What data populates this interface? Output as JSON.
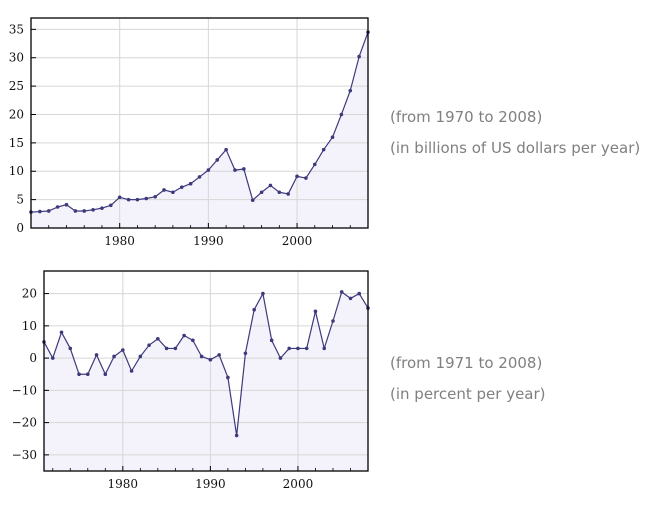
{
  "chart_data": [
    {
      "type": "line",
      "title": "",
      "xlabel": "",
      "ylabel": "",
      "xlim": [
        1970,
        2008
      ],
      "ylim": [
        0,
        37
      ],
      "x_ticks": [
        1980,
        1990,
        2000
      ],
      "y_ticks": [
        0,
        5,
        10,
        15,
        20,
        25,
        30,
        35
      ],
      "grid": true,
      "fill": "below",
      "notes": [
        "(from 1970 to 2008)",
        "(in billions of US dollars per year)"
      ],
      "x": [
        1970,
        1971,
        1972,
        1973,
        1974,
        1975,
        1976,
        1977,
        1978,
        1979,
        1980,
        1981,
        1982,
        1983,
        1984,
        1985,
        1986,
        1987,
        1988,
        1989,
        1990,
        1991,
        1992,
        1993,
        1994,
        1995,
        1996,
        1997,
        1998,
        1999,
        2000,
        2001,
        2002,
        2003,
        2004,
        2005,
        2006,
        2007,
        2008
      ],
      "values": [
        2.8,
        2.9,
        3.0,
        3.7,
        4.1,
        3.0,
        3.0,
        3.2,
        3.5,
        4.0,
        5.4,
        5.0,
        5.0,
        5.2,
        5.5,
        6.7,
        6.3,
        7.2,
        7.8,
        9.0,
        10.2,
        12.0,
        13.8,
        10.2,
        10.4,
        4.9,
        6.3,
        7.5,
        6.3,
        6.0,
        9.1,
        8.8,
        11.2,
        13.8,
        16.0,
        20.0,
        24.2,
        30.2,
        34.5
      ],
      "colors": {
        "line": "#3d3a7c",
        "fill": "#f4f3fb",
        "grid": "#d6d6d6",
        "frame": "#000000"
      }
    },
    {
      "type": "line",
      "title": "",
      "xlabel": "",
      "ylabel": "",
      "xlim": [
        1971,
        2008
      ],
      "ylim": [
        -35,
        27
      ],
      "x_ticks": [
        1980,
        1990,
        2000
      ],
      "y_ticks": [
        -30,
        -20,
        -10,
        0,
        10,
        20
      ],
      "grid": true,
      "fill": "below",
      "notes": [
        "(from 1971 to 2008)",
        "(in percent per year)"
      ],
      "x": [
        1971,
        1972,
        1973,
        1974,
        1975,
        1976,
        1977,
        1978,
        1979,
        1980,
        1981,
        1982,
        1983,
        1984,
        1985,
        1986,
        1987,
        1988,
        1989,
        1990,
        1991,
        1992,
        1993,
        1994,
        1995,
        1996,
        1997,
        1998,
        1999,
        2000,
        2001,
        2002,
        2003,
        2004,
        2005,
        2006,
        2007,
        2008
      ],
      "values": [
        5,
        0,
        8,
        3,
        -5,
        -5,
        1,
        -5,
        0.5,
        2.5,
        -4,
        0.5,
        4,
        6,
        3,
        3,
        7,
        5.5,
        0.5,
        -0.5,
        1,
        -6,
        -24,
        1.5,
        15,
        20,
        5.5,
        0,
        3,
        3,
        3,
        14.5,
        3,
        11.5,
        20.5,
        18.5,
        20,
        15.5
      ],
      "colors": {
        "line": "#3d3a7c",
        "fill": "#f4f3fb",
        "grid": "#d6d6d6",
        "frame": "#000000"
      }
    }
  ]
}
